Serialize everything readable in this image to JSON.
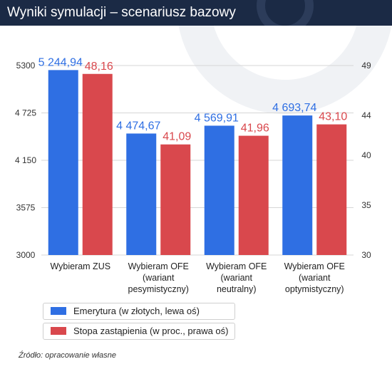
{
  "header": {
    "title": "Wyniki symulacji – scenariusz bazowy"
  },
  "colors": {
    "left_series": "#2f6fe3",
    "right_series": "#d9484d",
    "header_bg": "#1b2a45"
  },
  "chart_data": {
    "type": "bar",
    "title": "",
    "categories": [
      [
        "Wybieram ZUS"
      ],
      [
        "Wybieram OFE",
        "(wariant",
        "pesymistyczny)"
      ],
      [
        "Wybieram OFE",
        "(wariant",
        "neutralny)"
      ],
      [
        "Wybieram OFE",
        "(wariant",
        "optymistyczny)"
      ]
    ],
    "series": [
      {
        "name": "Emerytura (w złotych, lewa oś)",
        "axis": "left",
        "values": [
          5244.94,
          4474.67,
          4569.91,
          4693.74
        ],
        "labels": [
          "5 244,94",
          "4 474,67",
          "4 569,91",
          "4 693,74"
        ]
      },
      {
        "name": "Stopa zastąpienia (w proc., prawa oś)",
        "axis": "right",
        "values": [
          48.16,
          41.09,
          41.96,
          43.1
        ],
        "labels": [
          "48,16",
          "41,09",
          "41,96",
          "43,10"
        ]
      }
    ],
    "left_axis": {
      "ylim": [
        3000,
        5300
      ],
      "ticks": [
        3000,
        3575,
        4150,
        4725,
        5300
      ],
      "tick_labels": [
        "3000",
        "3575",
        "4 150",
        "4 725",
        "5300"
      ]
    },
    "right_axis": {
      "ylim": [
        30,
        49
      ],
      "ticks": [
        30,
        35,
        40,
        44,
        49
      ],
      "tick_labels": [
        "30",
        "35",
        "40",
        "44",
        "49"
      ]
    },
    "grid": true,
    "legend_position": "bottom-left"
  },
  "source": "Źródło: opracowanie własne"
}
